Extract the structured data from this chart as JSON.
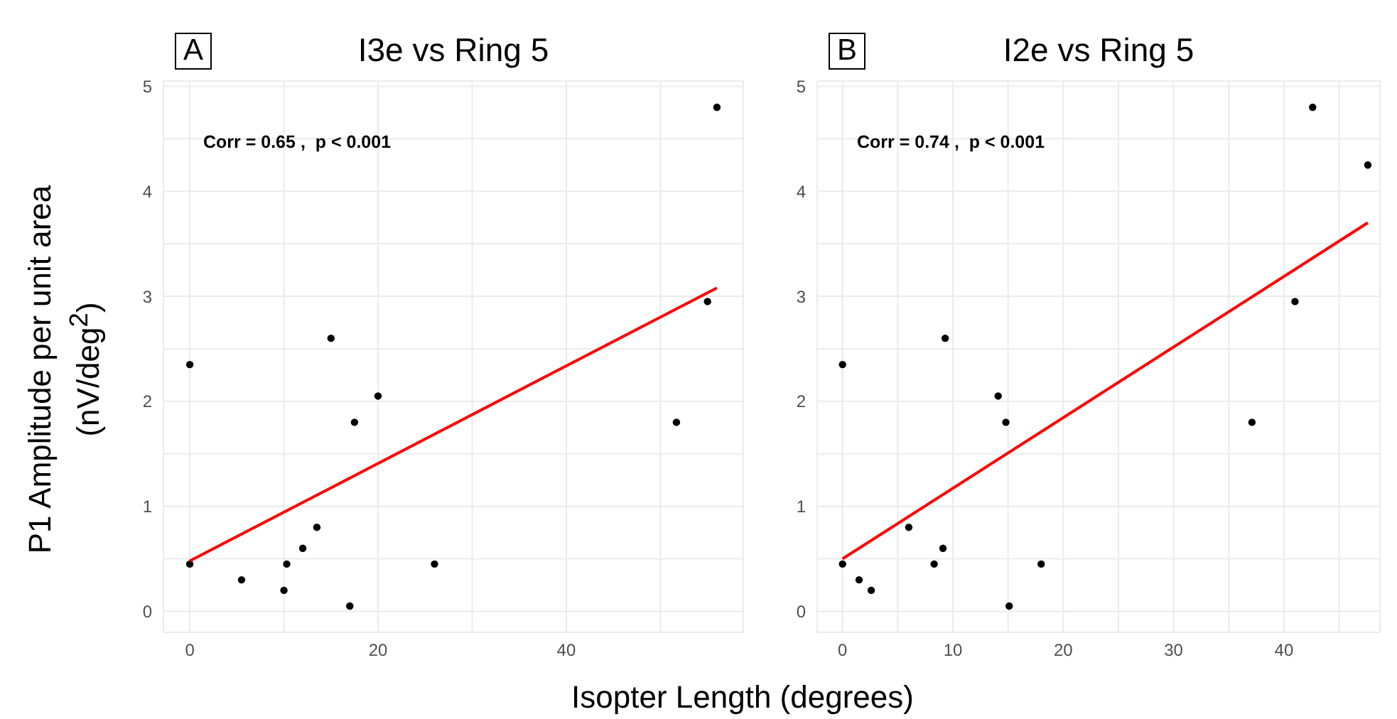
{
  "chart_data": [
    {
      "type": "scatter",
      "title": "I3e vs Ring 5",
      "xlabel": "Isopter Length (degrees)",
      "ylabel": "P1 Amplitude per unit area\n(nV/deg$^{2}$)",
      "annotations": [
        "A",
        "Corr = 0.65 ,  p < 0.001"
      ],
      "xlim": [
        -2.8,
        58.8
      ],
      "xticks": [
        0,
        {
          "value": 10,
          "label": null
        },
        20,
        {
          "value": 30,
          "label": null
        },
        40,
        {
          "value": 50,
          "label": null
        }
      ],
      "ylim": [
        -0.2,
        5.05
      ],
      "yticks": [
        0,
        {
          "value": 0.5,
          "label": null
        },
        1,
        {
          "value": 1.5,
          "label": null
        },
        2,
        {
          "value": 2.5,
          "label": null
        },
        3,
        {
          "value": 3.5,
          "label": null
        },
        4,
        {
          "value": 4.5,
          "label": null
        },
        5
      ],
      "grid": true,
      "marker": "circle",
      "series": [
        {
          "color": "#000000",
          "x": [
            0,
            0,
            5.5,
            10,
            10.3,
            12,
            13.5,
            15,
            17,
            17.5,
            20,
            26,
            51.7,
            55,
            56
          ],
          "values": [
            2.35,
            0.45,
            0.3,
            0.2,
            0.45,
            0.6,
            0.8,
            2.6,
            0.05,
            1.8,
            2.05,
            0.45,
            1.8,
            2.95,
            4.8
          ]
        },
        {
          "type": "line",
          "marker": "none",
          "color": "#ff0000",
          "x": [
            0,
            56
          ],
          "values": [
            0.48,
            3.08
          ]
        }
      ]
    },
    {
      "type": "scatter",
      "title": "I2e vs Ring 5",
      "annotations": [
        "B",
        "Corr = 0.74 ,  p < 0.001"
      ],
      "xlim": [
        -2.3,
        48.7
      ],
      "xticks": [
        0,
        {
          "value": 5,
          "label": null
        },
        10,
        {
          "value": 15,
          "label": null
        },
        20,
        {
          "value": 25,
          "label": null
        },
        30,
        {
          "value": 35,
          "label": null
        },
        40,
        {
          "value": 45,
          "label": null
        }
      ],
      "ylim": [
        -0.2,
        5.05
      ],
      "yticks": [
        0,
        {
          "value": 0.5,
          "label": null
        },
        1,
        {
          "value": 1.5,
          "label": null
        },
        2,
        {
          "value": 2.5,
          "label": null
        },
        3,
        {
          "value": 3.5,
          "label": null
        },
        4,
        {
          "value": 4.5,
          "label": null
        },
        5
      ],
      "grid": true,
      "marker": "circle",
      "series": [
        {
          "color": "#000000",
          "x": [
            0,
            0,
            1.5,
            2.6,
            6,
            8.3,
            9.1,
            9.3,
            14.1,
            14.8,
            15.1,
            18,
            37.1,
            41,
            42.6,
            47.6
          ],
          "values": [
            2.35,
            0.45,
            0.3,
            0.2,
            0.8,
            0.45,
            0.6,
            2.6,
            2.05,
            1.8,
            0.05,
            0.45,
            1.8,
            2.95,
            4.8,
            4.25
          ]
        },
        {
          "type": "line",
          "marker": "none",
          "color": "#ff0000",
          "x": [
            0,
            47.6
          ],
          "values": [
            0.5,
            3.7
          ]
        }
      ]
    }
  ]
}
